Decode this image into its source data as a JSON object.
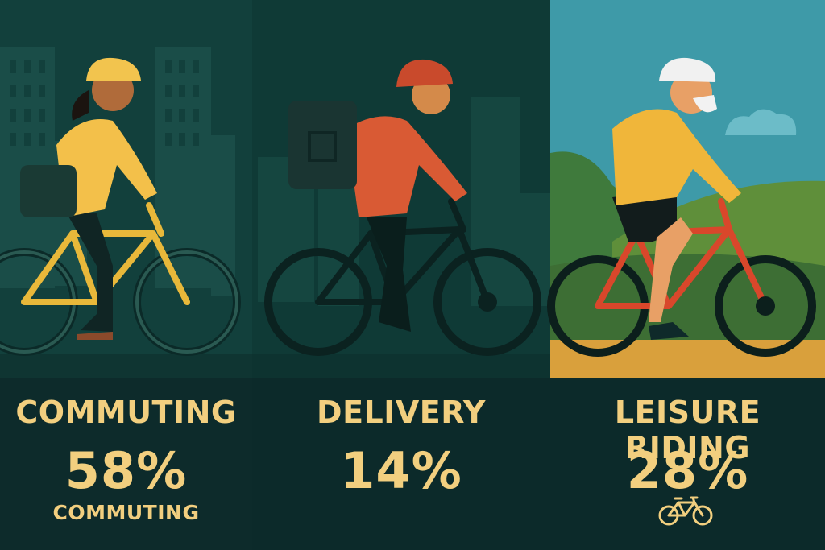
{
  "panels": [
    {
      "title": "COMMUTING",
      "percent": "58%",
      "sub_label": "COMMUTING"
    },
    {
      "title": "DELIVERY",
      "percent": "14%"
    },
    {
      "title": "LEISURE RIDING",
      "percent": "28%",
      "icon": "bicycle-icon"
    }
  ],
  "colors": {
    "text_accent": "#f2cf7f",
    "bg_dark": "#0c2a2a",
    "panel1_bg": "#12403c",
    "panel2_bg": "#0f3a36",
    "panel3_sky": "#3e9aa8",
    "panel3_path": "#d9a03c"
  }
}
